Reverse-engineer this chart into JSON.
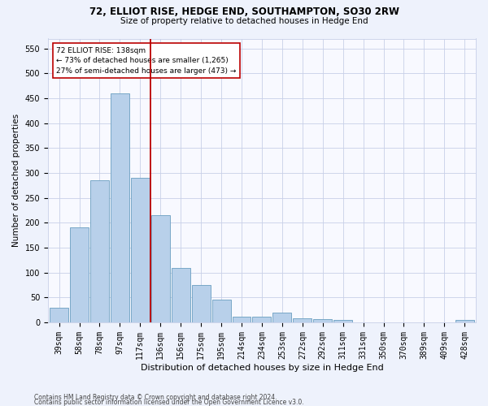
{
  "title": "72, ELLIOT RISE, HEDGE END, SOUTHAMPTON, SO30 2RW",
  "subtitle": "Size of property relative to detached houses in Hedge End",
  "xlabel": "Distribution of detached houses by size in Hedge End",
  "ylabel": "Number of detached properties",
  "categories": [
    "39sqm",
    "58sqm",
    "78sqm",
    "97sqm",
    "117sqm",
    "136sqm",
    "156sqm",
    "175sqm",
    "195sqm",
    "214sqm",
    "234sqm",
    "253sqm",
    "272sqm",
    "292sqm",
    "311sqm",
    "331sqm",
    "350sqm",
    "370sqm",
    "389sqm",
    "409sqm",
    "428sqm"
  ],
  "values": [
    30,
    190,
    285,
    460,
    290,
    215,
    110,
    75,
    45,
    12,
    12,
    20,
    8,
    6,
    5,
    0,
    0,
    0,
    0,
    0,
    5
  ],
  "bar_color": "#b8d0ea",
  "bar_edge_color": "#6a9ec0",
  "vline_x_index": 5,
  "vline_color": "#bb0000",
  "annotation_line1": "72 ELLIOT RISE: 138sqm",
  "annotation_line2": "← 73% of detached houses are smaller (1,265)",
  "annotation_line3": "27% of semi-detached houses are larger (473) →",
  "annotation_box_facecolor": "#ffffff",
  "annotation_box_edgecolor": "#bb0000",
  "ylim": [
    0,
    570
  ],
  "yticks": [
    0,
    50,
    100,
    150,
    200,
    250,
    300,
    350,
    400,
    450,
    500,
    550
  ],
  "footnote1": "Contains HM Land Registry data © Crown copyright and database right 2024.",
  "footnote2": "Contains public sector information licensed under the Open Government Licence v3.0.",
  "bg_color": "#eef2fc",
  "plot_bg_color": "#f8f9ff",
  "grid_color": "#c8d0e8",
  "title_fontsize": 8.5,
  "subtitle_fontsize": 7.5,
  "xlabel_fontsize": 8,
  "ylabel_fontsize": 7.5,
  "tick_fontsize": 7,
  "footnote_fontsize": 5.5
}
